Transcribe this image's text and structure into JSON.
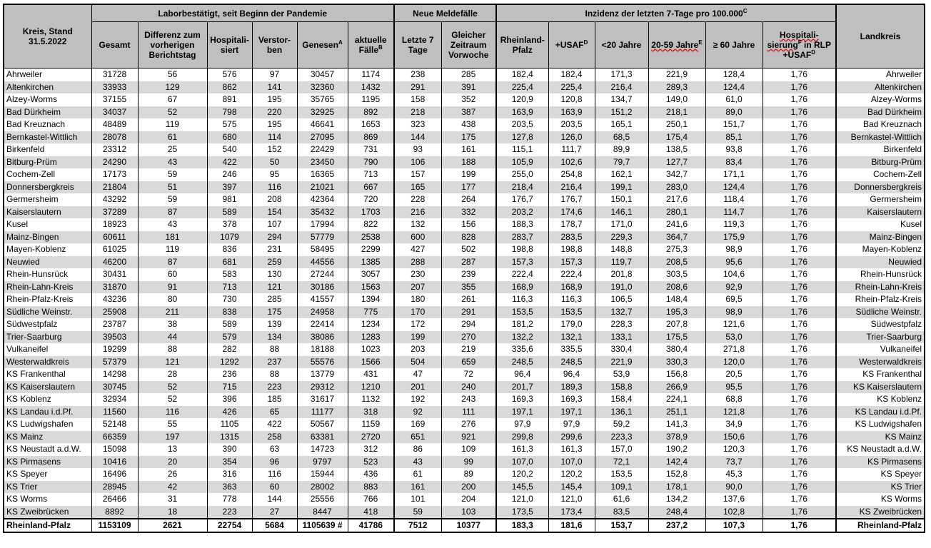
{
  "header": {
    "kreis": "Kreis, Stand 31.5.2022",
    "group_labor": "Laborbestätigt, seit Beginn der Pandemie",
    "group_neue": "Neue Meldefälle",
    "group_inzidenz": "Inzidenz der letzten 7-Tage pro 100.000",
    "group_inzidenz_sup": "C",
    "landkreis": "Landkreis",
    "columns": [
      {
        "label": "Gesamt",
        "sup": ""
      },
      {
        "label": "Differenz zum vorherigen Berichtstag",
        "sup": ""
      },
      {
        "label": "Hospitali- siert",
        "sup": ""
      },
      {
        "label": "Verstor- ben",
        "sup": ""
      },
      {
        "label": "Genesen",
        "sup": "A"
      },
      {
        "label": "aktuelle Fälle",
        "sup": "B"
      },
      {
        "label": "Letzte 7 Tage",
        "sup": ""
      },
      {
        "label": "Gleicher Zeitraum Vorwoche",
        "sup": ""
      },
      {
        "label": "Rheinland- Pfalz",
        "sup": ""
      },
      {
        "label": "+USAF",
        "sup": "D"
      },
      {
        "label": "<20 Jahre",
        "sup": ""
      },
      {
        "label": "20-59 Jahre",
        "sup": "E"
      },
      {
        "label": "≥ 60 Jahre",
        "sup": ""
      },
      {
        "label": "Hospitali- sierung",
        "sup": "F",
        "label2": " in RLP +USAF",
        "sup2": "D"
      }
    ]
  },
  "rows": [
    [
      "Ahrweiler",
      "31728",
      "56",
      "576",
      "97",
      "30457",
      "1174",
      "238",
      "285",
      "182,4",
      "182,4",
      "171,3",
      "221,9",
      "128,4",
      "1,76"
    ],
    [
      "Altenkirchen",
      "33933",
      "129",
      "862",
      "141",
      "32360",
      "1432",
      "291",
      "391",
      "225,4",
      "225,4",
      "216,4",
      "289,3",
      "124,4",
      "1,76"
    ],
    [
      "Alzey-Worms",
      "37155",
      "67",
      "891",
      "195",
      "35765",
      "1195",
      "158",
      "352",
      "120,9",
      "120,8",
      "134,7",
      "149,0",
      "61,0",
      "1,76"
    ],
    [
      "Bad Dürkheim",
      "34037",
      "52",
      "798",
      "220",
      "32925",
      "892",
      "218",
      "387",
      "163,9",
      "163,9",
      "151,2",
      "218,1",
      "89,0",
      "1,76"
    ],
    [
      "Bad Kreuznach",
      "48489",
      "119",
      "575",
      "195",
      "46641",
      "1653",
      "323",
      "438",
      "203,5",
      "203,5",
      "165,1",
      "250,1",
      "151,7",
      "1,76"
    ],
    [
      "Bernkastel-Wittlich",
      "28078",
      "61",
      "680",
      "114",
      "27095",
      "869",
      "144",
      "175",
      "127,8",
      "126,0",
      "68,5",
      "175,4",
      "85,1",
      "1,76"
    ],
    [
      "Birkenfeld",
      "23312",
      "25",
      "540",
      "152",
      "22429",
      "731",
      "93",
      "161",
      "115,1",
      "111,7",
      "89,9",
      "138,5",
      "93,8",
      "1,76"
    ],
    [
      "Bitburg-Prüm",
      "24290",
      "43",
      "422",
      "50",
      "23450",
      "790",
      "106",
      "188",
      "105,9",
      "102,6",
      "79,7",
      "127,7",
      "83,4",
      "1,76"
    ],
    [
      "Cochem-Zell",
      "17173",
      "59",
      "246",
      "95",
      "16365",
      "713",
      "157",
      "199",
      "255,0",
      "254,8",
      "162,1",
      "342,7",
      "171,1",
      "1,76"
    ],
    [
      "Donnersbergkreis",
      "21804",
      "51",
      "397",
      "116",
      "21021",
      "667",
      "165",
      "177",
      "218,4",
      "216,4",
      "199,1",
      "283,0",
      "124,4",
      "1,76"
    ],
    [
      "Germersheim",
      "43292",
      "59",
      "981",
      "208",
      "42364",
      "720",
      "228",
      "264",
      "176,7",
      "176,7",
      "150,1",
      "217,6",
      "118,4",
      "1,76"
    ],
    [
      "Kaiserslautern",
      "37289",
      "87",
      "589",
      "154",
      "35432",
      "1703",
      "216",
      "332",
      "203,2",
      "174,6",
      "146,1",
      "280,1",
      "114,7",
      "1,76"
    ],
    [
      "Kusel",
      "18923",
      "43",
      "378",
      "107",
      "17994",
      "822",
      "132",
      "156",
      "188,3",
      "178,7",
      "171,0",
      "241,6",
      "119,3",
      "1,76"
    ],
    [
      "Mainz-Bingen",
      "60611",
      "181",
      "1079",
      "294",
      "57779",
      "2538",
      "600",
      "828",
      "283,7",
      "283,5",
      "229,3",
      "364,7",
      "175,9",
      "1,76"
    ],
    [
      "Mayen-Koblenz",
      "61025",
      "119",
      "836",
      "231",
      "58495",
      "2299",
      "427",
      "502",
      "198,8",
      "198,8",
      "148,8",
      "275,3",
      "98,9",
      "1,76"
    ],
    [
      "Neuwied",
      "46200",
      "87",
      "681",
      "259",
      "44556",
      "1385",
      "288",
      "287",
      "157,3",
      "157,3",
      "119,7",
      "208,5",
      "95,6",
      "1,76"
    ],
    [
      "Rhein-Hunsrück",
      "30431",
      "60",
      "583",
      "130",
      "27244",
      "3057",
      "230",
      "239",
      "222,4",
      "222,4",
      "201,8",
      "303,5",
      "104,6",
      "1,76"
    ],
    [
      "Rhein-Lahn-Kreis",
      "31870",
      "91",
      "713",
      "121",
      "30186",
      "1563",
      "207",
      "355",
      "168,9",
      "168,9",
      "191,0",
      "208,6",
      "92,9",
      "1,76"
    ],
    [
      "Rhein-Pfalz-Kreis",
      "43236",
      "80",
      "730",
      "285",
      "41557",
      "1394",
      "180",
      "261",
      "116,3",
      "116,3",
      "106,5",
      "148,4",
      "69,5",
      "1,76"
    ],
    [
      "Südliche Weinstr.",
      "25908",
      "211",
      "838",
      "175",
      "24958",
      "775",
      "170",
      "291",
      "153,5",
      "153,5",
      "132,7",
      "195,3",
      "98,9",
      "1,76"
    ],
    [
      "Südwestpfalz",
      "23787",
      "38",
      "589",
      "139",
      "22414",
      "1234",
      "172",
      "294",
      "181,2",
      "179,0",
      "228,3",
      "207,8",
      "121,6",
      "1,76"
    ],
    [
      "Trier-Saarburg",
      "39503",
      "44",
      "579",
      "134",
      "38086",
      "1283",
      "199",
      "270",
      "132,2",
      "132,1",
      "133,1",
      "175,5",
      "53,0",
      "1,76"
    ],
    [
      "Vulkaneifel",
      "19299",
      "88",
      "282",
      "88",
      "18188",
      "1023",
      "203",
      "219",
      "335,6",
      "335,5",
      "330,4",
      "380,4",
      "271,8",
      "1,76"
    ],
    [
      "Westerwaldkreis",
      "57379",
      "121",
      "1292",
      "237",
      "55576",
      "1566",
      "504",
      "659",
      "248,5",
      "248,5",
      "221,9",
      "330,3",
      "120,0",
      "1,76"
    ],
    [
      "KS Frankenthal",
      "14298",
      "28",
      "236",
      "88",
      "13779",
      "431",
      "47",
      "72",
      "96,4",
      "96,4",
      "53,9",
      "156,8",
      "20,5",
      "1,76"
    ],
    [
      "KS Kaiserslautern",
      "30745",
      "52",
      "715",
      "223",
      "29312",
      "1210",
      "201",
      "240",
      "201,7",
      "189,3",
      "158,8",
      "266,9",
      "95,5",
      "1,76"
    ],
    [
      "KS Koblenz",
      "32934",
      "52",
      "396",
      "185",
      "31617",
      "1132",
      "192",
      "243",
      "169,3",
      "169,3",
      "158,4",
      "224,1",
      "68,8",
      "1,76"
    ],
    [
      "KS Landau i.d.Pf.",
      "11560",
      "116",
      "426",
      "65",
      "11177",
      "318",
      "92",
      "111",
      "197,1",
      "197,1",
      "136,1",
      "251,1",
      "121,8",
      "1,76"
    ],
    [
      "KS Ludwigshafen",
      "52148",
      "55",
      "1105",
      "422",
      "50567",
      "1159",
      "169",
      "276",
      "97,9",
      "97,9",
      "59,2",
      "141,3",
      "34,9",
      "1,76"
    ],
    [
      "KS Mainz",
      "66359",
      "197",
      "1315",
      "258",
      "63381",
      "2720",
      "651",
      "921",
      "299,8",
      "299,6",
      "223,3",
      "378,9",
      "150,6",
      "1,76"
    ],
    [
      "KS Neustadt a.d.W.",
      "15098",
      "13",
      "390",
      "63",
      "14723",
      "312",
      "86",
      "109",
      "161,3",
      "161,3",
      "157,0",
      "190,2",
      "120,3",
      "1,76"
    ],
    [
      "KS Pirmasens",
      "10416",
      "20",
      "354",
      "96",
      "9797",
      "523",
      "43",
      "99",
      "107,0",
      "107,0",
      "72,1",
      "142,4",
      "73,7",
      "1,76"
    ],
    [
      "KS Speyer",
      "16496",
      "26",
      "316",
      "116",
      "15944",
      "436",
      "61",
      "89",
      "120,2",
      "120,2",
      "153,5",
      "152,8",
      "45,3",
      "1,76"
    ],
    [
      "KS Trier",
      "28945",
      "42",
      "363",
      "60",
      "28002",
      "883",
      "161",
      "200",
      "145,5",
      "145,4",
      "109,1",
      "178,1",
      "90,0",
      "1,76"
    ],
    [
      "KS Worms",
      "26466",
      "31",
      "778",
      "144",
      "25556",
      "766",
      "101",
      "204",
      "121,0",
      "121,0",
      "61,6",
      "134,2",
      "137,6",
      "1,76"
    ],
    [
      "KS Zweibrücken",
      "8892",
      "18",
      "223",
      "27",
      "8447",
      "418",
      "59",
      "103",
      "173,5",
      "173,4",
      "83,5",
      "248,4",
      "102,8",
      "1,76"
    ]
  ],
  "total": [
    "Rheinland-Pfalz",
    "1153109",
    "2621",
    "22754",
    "5684",
    "1105639 #",
    "41786",
    "7512",
    "10377",
    "183,3",
    "181,6",
    "153,7",
    "237,2",
    "107,3",
    "1,76"
  ],
  "colors": {
    "header_bg": "#bfbfbf",
    "alt_row_bg": "#d9d9d9"
  }
}
